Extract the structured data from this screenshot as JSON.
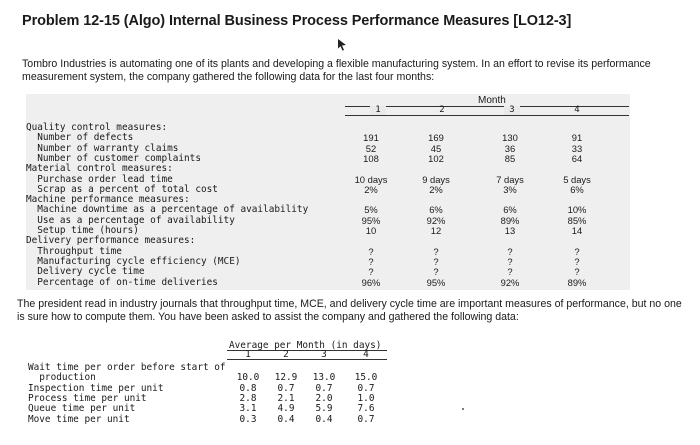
{
  "title": "Problem 12-15 (Algo) Internal Business Process Performance Measures [LO12-3]",
  "intro": "Tombro Industries is automating one of its plants and developing a flexible manufacturing system. In an effort to revise its performance measurement system, the company gathered the following data for the last four months:",
  "table1": {
    "group_header": "Month",
    "months": [
      "1",
      "2",
      "3",
      "4"
    ],
    "rows": [
      {
        "label": "Quality control measures:",
        "values": [
          "",
          "",
          "",
          ""
        ]
      },
      {
        "label": "  Number of defects",
        "values": [
          "191",
          "169",
          "130",
          "91"
        ]
      },
      {
        "label": "  Number of warranty claims",
        "values": [
          "52",
          "45",
          "36",
          "33"
        ]
      },
      {
        "label": "  Number of customer complaints",
        "values": [
          "108",
          "102",
          "85",
          "64"
        ]
      },
      {
        "label": "Material control measures:",
        "values": [
          "",
          "",
          "",
          ""
        ]
      },
      {
        "label": "  Purchase order lead time",
        "values": [
          "10 days",
          "9 days",
          "7 days",
          "5 days"
        ]
      },
      {
        "label": "  Scrap as a percent of total cost",
        "values": [
          "2%",
          "2%",
          "3%",
          "6%"
        ]
      },
      {
        "label": "Machine performance measures:",
        "values": [
          "",
          "",
          "",
          ""
        ]
      },
      {
        "label": "  Machine downtime as a percentage of availability",
        "values": [
          "5%",
          "6%",
          "6%",
          "10%"
        ]
      },
      {
        "label": "  Use as a percentage of availability",
        "values": [
          "95%",
          "92%",
          "89%",
          "85%"
        ]
      },
      {
        "label": "  Setup time (hours)",
        "values": [
          "10",
          "12",
          "13",
          "14"
        ]
      },
      {
        "label": "Delivery performance measures:",
        "values": [
          "",
          "",
          "",
          ""
        ]
      },
      {
        "label": "  Throughput time",
        "values": [
          "?",
          "?",
          "?",
          "?"
        ]
      },
      {
        "label": "  Manufacturing cycle efficiency (MCE)",
        "values": [
          "?",
          "?",
          "?",
          "?"
        ]
      },
      {
        "label": "  Delivery cycle time",
        "values": [
          "?",
          "?",
          "?",
          "?"
        ]
      },
      {
        "label": "  Percentage of on-time deliveries",
        "values": [
          "96%",
          "95%",
          "92%",
          "89%"
        ]
      }
    ]
  },
  "para2": "The president read in industry journals that throughput time, MCE, and delivery cycle time are important measures of performance, but no one is sure how to compute them. You have been asked to assist the company and gathered the following data:",
  "table2": {
    "group_header": "Average per Month (in days)",
    "months": [
      "1",
      "2",
      "3",
      "4"
    ],
    "rows": [
      {
        "label": "Wait time per order before start of",
        "values": [
          "",
          "",
          "",
          ""
        ]
      },
      {
        "label": "  production",
        "values": [
          "10.0",
          "12.9",
          "13.0",
          "15.0"
        ]
      },
      {
        "label": "Inspection time per unit",
        "values": [
          "0.8",
          "0.7",
          "0.7",
          "0.7"
        ]
      },
      {
        "label": "Process time per unit",
        "values": [
          "2.8",
          "2.1",
          "2.0",
          "1.0"
        ]
      },
      {
        "label": "Queue time per unit",
        "values": [
          "3.1",
          "4.9",
          "5.9",
          "7.6"
        ]
      },
      {
        "label": "Move time per unit",
        "values": [
          "0.3",
          "0.4",
          "0.4",
          "0.7"
        ]
      }
    ]
  }
}
